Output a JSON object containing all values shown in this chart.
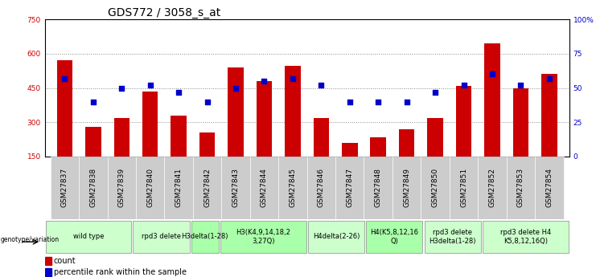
{
  "title": "GDS772 / 3058_s_at",
  "samples": [
    "GSM27837",
    "GSM27838",
    "GSM27839",
    "GSM27840",
    "GSM27841",
    "GSM27842",
    "GSM27843",
    "GSM27844",
    "GSM27845",
    "GSM27846",
    "GSM27847",
    "GSM27848",
    "GSM27849",
    "GSM27850",
    "GSM27851",
    "GSM27852",
    "GSM27853",
    "GSM27854"
  ],
  "counts": [
    570,
    280,
    320,
    435,
    330,
    255,
    540,
    480,
    545,
    320,
    210,
    235,
    270,
    320,
    460,
    645,
    450,
    510
  ],
  "percentiles": [
    57,
    40,
    50,
    52,
    47,
    40,
    50,
    55,
    57,
    52,
    40,
    40,
    40,
    47,
    52,
    60,
    52,
    57
  ],
  "bar_color": "#cc0000",
  "dot_color": "#0000cc",
  "ylim_left": [
    150,
    750
  ],
  "ylim_right": [
    0,
    100
  ],
  "yticks_left": [
    150,
    300,
    450,
    600,
    750
  ],
  "yticks_right": [
    0,
    25,
    50,
    75,
    100
  ],
  "groups": [
    {
      "label": "wild type",
      "start": 0,
      "end": 3,
      "color": "#ccffcc"
    },
    {
      "label": "rpd3 delete",
      "start": 3,
      "end": 5,
      "color": "#ccffcc"
    },
    {
      "label": "H3delta(1-28)",
      "start": 5,
      "end": 6,
      "color": "#aaffaa"
    },
    {
      "label": "H3(K4,9,14,18,2\n3,27Q)",
      "start": 6,
      "end": 9,
      "color": "#aaffaa"
    },
    {
      "label": "H4delta(2-26)",
      "start": 9,
      "end": 11,
      "color": "#ccffcc"
    },
    {
      "label": "H4(K5,8,12,16\nQ)",
      "start": 11,
      "end": 13,
      "color": "#aaffaa"
    },
    {
      "label": "rpd3 delete\nH3delta(1-28)",
      "start": 13,
      "end": 15,
      "color": "#ccffcc"
    },
    {
      "label": "rpd3 delete H4\nK5,8,12,16Q)",
      "start": 15,
      "end": 18,
      "color": "#ccffcc"
    }
  ],
  "background_color": "#ffffff",
  "plot_bg_color": "#ffffff",
  "grid_color": "#888888",
  "title_fontsize": 10,
  "tick_fontsize": 6.5,
  "group_fontsize": 6,
  "sample_bg_color": "#cccccc",
  "group_border_color": "#888888"
}
